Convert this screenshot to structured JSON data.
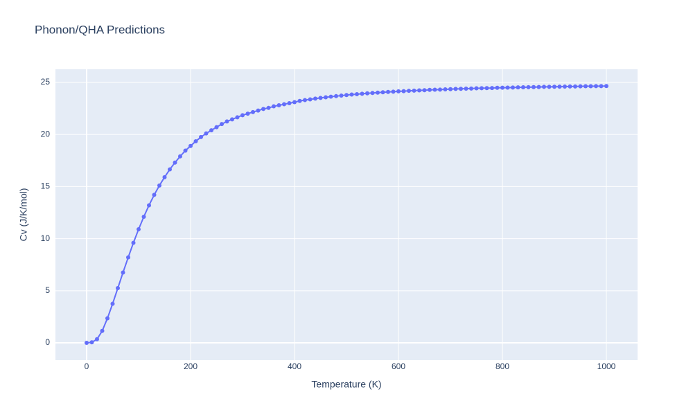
{
  "chart_data": {
    "type": "line",
    "title": "Phonon/QHA Predictions",
    "x_label": "Temperature (K)",
    "y_label": "Cv (J/K/mol)",
    "x": [
      0,
      10,
      20,
      30,
      40,
      50,
      60,
      70,
      80,
      90,
      100,
      110,
      120,
      130,
      140,
      150,
      160,
      170,
      180,
      190,
      200,
      210,
      220,
      230,
      240,
      250,
      260,
      270,
      280,
      290,
      300,
      310,
      320,
      330,
      340,
      350,
      360,
      370,
      380,
      390,
      400,
      410,
      420,
      430,
      440,
      450,
      460,
      470,
      480,
      490,
      500,
      510,
      520,
      530,
      540,
      550,
      560,
      570,
      580,
      590,
      600,
      610,
      620,
      630,
      640,
      650,
      660,
      670,
      680,
      690,
      700,
      710,
      720,
      730,
      740,
      750,
      760,
      770,
      780,
      790,
      800,
      810,
      820,
      830,
      840,
      850,
      860,
      870,
      880,
      890,
      900,
      910,
      920,
      930,
      940,
      950,
      960,
      970,
      980,
      990,
      1000
    ],
    "series": [
      {
        "name": "Cv",
        "color": "#636efa",
        "values": [
          0,
          0.05,
          0.35,
          1.15,
          2.35,
          3.75,
          5.25,
          6.75,
          8.2,
          9.6,
          10.9,
          12.1,
          13.2,
          14.2,
          15.1,
          15.9,
          16.65,
          17.3,
          17.9,
          18.45,
          18.9,
          19.35,
          19.75,
          20.1,
          20.4,
          20.7,
          21.0,
          21.25,
          21.45,
          21.65,
          21.85,
          22.0,
          22.15,
          22.3,
          22.45,
          22.55,
          22.7,
          22.8,
          22.9,
          23.0,
          23.1,
          23.22,
          23.3,
          23.37,
          23.44,
          23.51,
          23.57,
          23.63,
          23.68,
          23.73,
          23.78,
          23.83,
          23.87,
          23.91,
          23.95,
          23.98,
          24.02,
          24.05,
          24.08,
          24.11,
          24.14,
          24.16,
          24.19,
          24.21,
          24.23,
          24.25,
          24.28,
          24.3,
          24.31,
          24.33,
          24.35,
          24.37,
          24.38,
          24.4,
          24.41,
          24.43,
          24.44,
          24.45,
          24.46,
          24.48,
          24.49,
          24.5,
          24.51,
          24.52,
          24.53,
          24.54,
          24.55,
          24.56,
          24.57,
          24.57,
          24.58,
          24.59,
          24.6,
          24.61,
          24.61,
          24.62,
          24.63,
          24.63,
          24.64,
          24.64,
          24.65
        ]
      }
    ],
    "xlim": [
      -60,
      1060
    ],
    "ylim": [
      -1.66,
      26.26
    ],
    "xticks": [
      0,
      200,
      400,
      600,
      800,
      1000
    ],
    "yticks": [
      0,
      5,
      10,
      15,
      20,
      25
    ],
    "grid": true
  }
}
